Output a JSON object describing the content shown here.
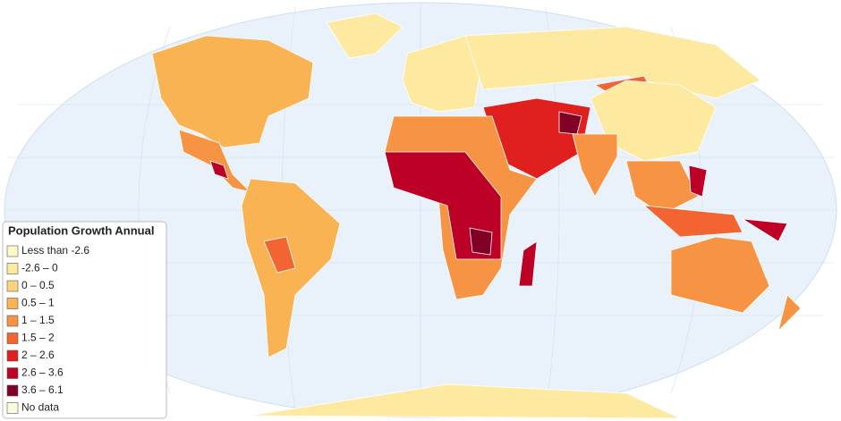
{
  "legend": {
    "title": "Population Growth Annual",
    "items": [
      {
        "label": "Less than -2.6",
        "color": "#fffbc4"
      },
      {
        "label": "-2.6 – 0",
        "color": "#fde9a0"
      },
      {
        "label": "0 – 0.5",
        "color": "#fdd47a"
      },
      {
        "label": "0.5 – 1",
        "color": "#f9b352"
      },
      {
        "label": "1 – 1.5",
        "color": "#f79444"
      },
      {
        "label": "1.5 – 2",
        "color": "#f26532"
      },
      {
        "label": "2 – 2.6",
        "color": "#e0201f"
      },
      {
        "label": "2.6 – 3.6",
        "color": "#bd0026"
      },
      {
        "label": "3.6 – 6.1",
        "color": "#800026"
      },
      {
        "label": "No data",
        "color": "#fffbdf"
      }
    ]
  }
}
